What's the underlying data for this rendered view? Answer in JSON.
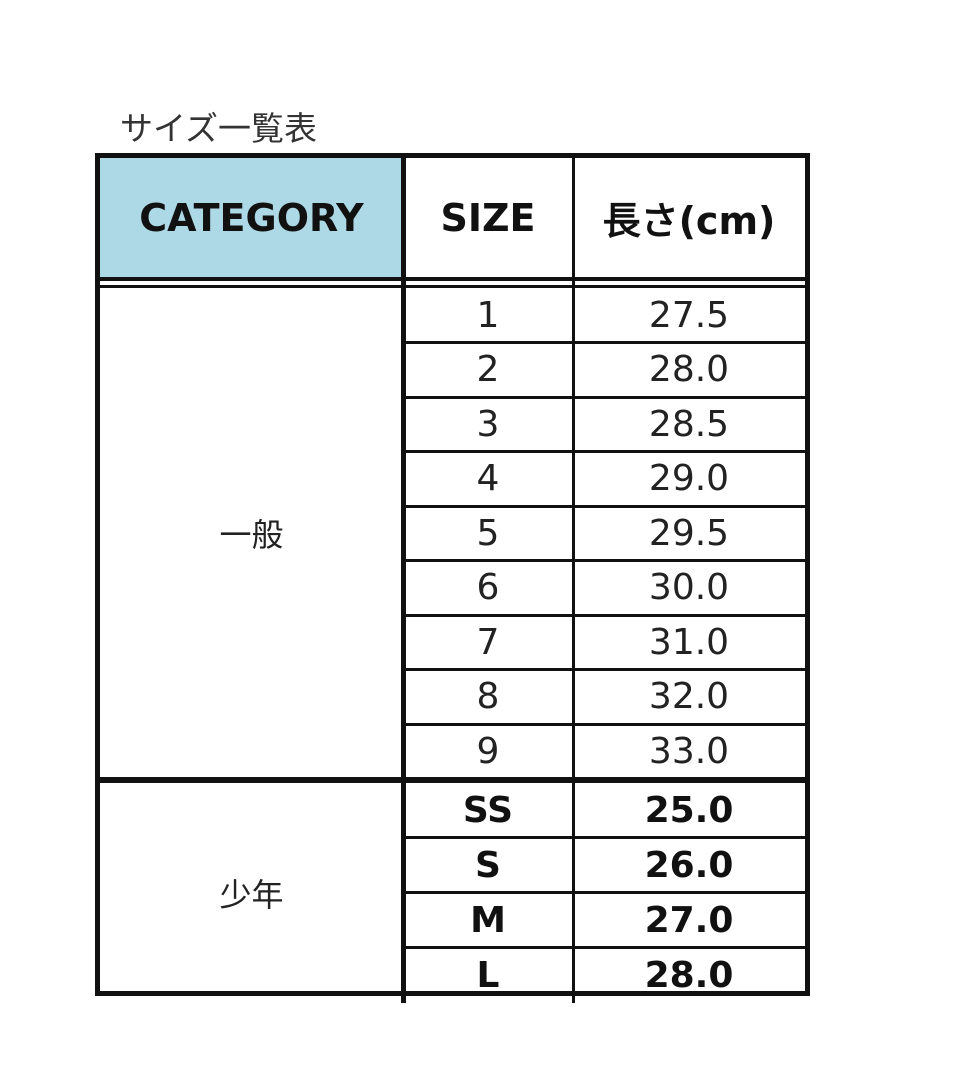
{
  "title": "サイズ一覧表",
  "header": {
    "category": "CATEGORY",
    "size": "SIZE",
    "length": "長さ(cm)"
  },
  "header_color": "#add8e6",
  "groups": [
    {
      "category": "一般",
      "bold": false,
      "rows": [
        {
          "size": "1",
          "length": "27.5"
        },
        {
          "size": "2",
          "length": "28.0"
        },
        {
          "size": "3",
          "length": "28.5"
        },
        {
          "size": "4",
          "length": "29.0"
        },
        {
          "size": "5",
          "length": "29.5"
        },
        {
          "size": "6",
          "length": "30.0"
        },
        {
          "size": "7",
          "length": "31.0"
        },
        {
          "size": "8",
          "length": "32.0"
        },
        {
          "size": "9",
          "length": "33.0"
        }
      ]
    },
    {
      "category": "少年",
      "bold": true,
      "rows": [
        {
          "size": "SS",
          "length": "25.0"
        },
        {
          "size": "S",
          "length": "26.0"
        },
        {
          "size": "M",
          "length": "27.0"
        },
        {
          "size": "L",
          "length": "28.0"
        }
      ]
    }
  ]
}
